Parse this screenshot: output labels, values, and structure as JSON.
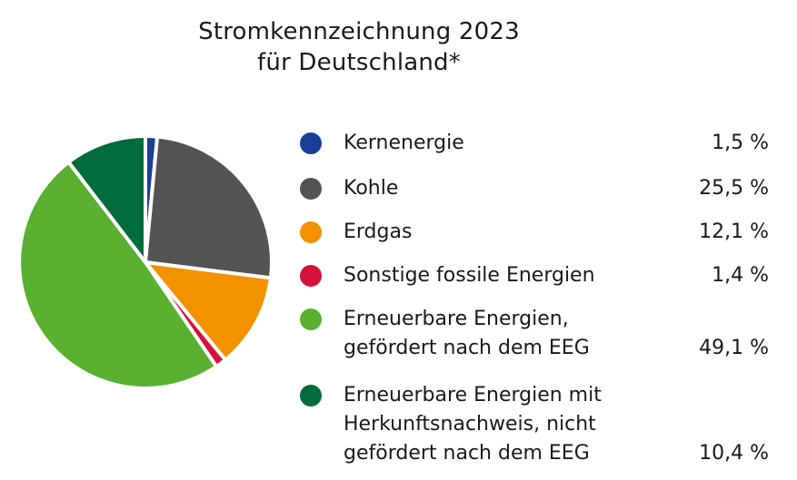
{
  "chart_data": {
    "type": "pie",
    "title_lines": [
      "Stromkennzeichnung 2023",
      "für Deutschland*"
    ],
    "slices": [
      {
        "label_lines": [
          "Kernenergie"
        ],
        "value": 1.5,
        "value_text": "1,5 %",
        "color": "#1b3f94"
      },
      {
        "label_lines": [
          "Kohle"
        ],
        "value": 25.5,
        "value_text": "25,5 %",
        "color": "#555355"
      },
      {
        "label_lines": [
          "Erdgas"
        ],
        "value": 12.1,
        "value_text": "12,1 %",
        "color": "#f39200"
      },
      {
        "label_lines": [
          "Sonstige fossile Energien"
        ],
        "value": 1.4,
        "value_text": "1,4 %",
        "color": "#d6123a"
      },
      {
        "label_lines": [
          "Erneuerbare Energien,",
          "gefördert nach dem EEG"
        ],
        "value": 49.1,
        "value_text": "49,1 %",
        "color": "#5ab031"
      },
      {
        "label_lines": [
          "Erneuerbare Energien mit",
          "Herkunftsnachweis, nicht",
          "gefördert nach dem EEG"
        ],
        "value": 10.4,
        "value_text": "10,4 %",
        "color": "#006b3c"
      }
    ],
    "start_angle_deg": 0,
    "direction": "clockwise",
    "legend_position": "right"
  }
}
